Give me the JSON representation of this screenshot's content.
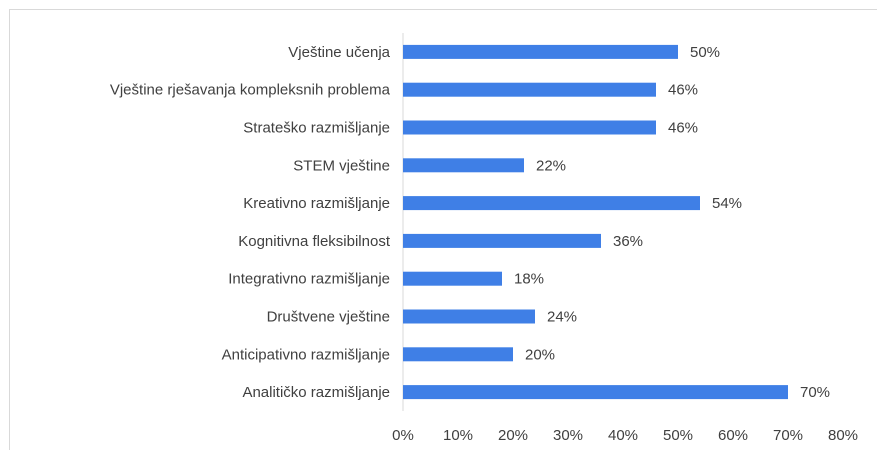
{
  "chart_data": {
    "type": "barh",
    "categories": [
      "Vještine učenja",
      "Vještine rješavanja kompleksnih problema",
      "Strateško razmišljanje",
      "STEM vještine",
      "Kreativno razmišljanje",
      "Kognitivna fleksibilnost",
      "Integrativno razmišljanje",
      "Društvene vještine",
      "Anticipativno razmišljanje",
      "Analitičko razmišljanje"
    ],
    "values": [
      50,
      46,
      46,
      22,
      54,
      36,
      18,
      24,
      20,
      70
    ],
    "value_labels": [
      "50%",
      "46%",
      "46%",
      "22%",
      "54%",
      "36%",
      "18%",
      "24%",
      "20%",
      "70%"
    ],
    "color": "#3f7fe6",
    "xlim": [
      0,
      80
    ],
    "xticks": [
      {
        "value": 0,
        "label": "0%"
      },
      {
        "value": 10,
        "label": "10%"
      },
      {
        "value": 20,
        "label": "20%"
      },
      {
        "value": 30,
        "label": "30%"
      },
      {
        "value": 40,
        "label": "40%"
      },
      {
        "value": 50,
        "label": "50%"
      },
      {
        "value": 60,
        "label": "60%"
      },
      {
        "value": 70,
        "label": "70%"
      },
      {
        "value": 80,
        "label": "80%"
      }
    ],
    "grid": false
  }
}
